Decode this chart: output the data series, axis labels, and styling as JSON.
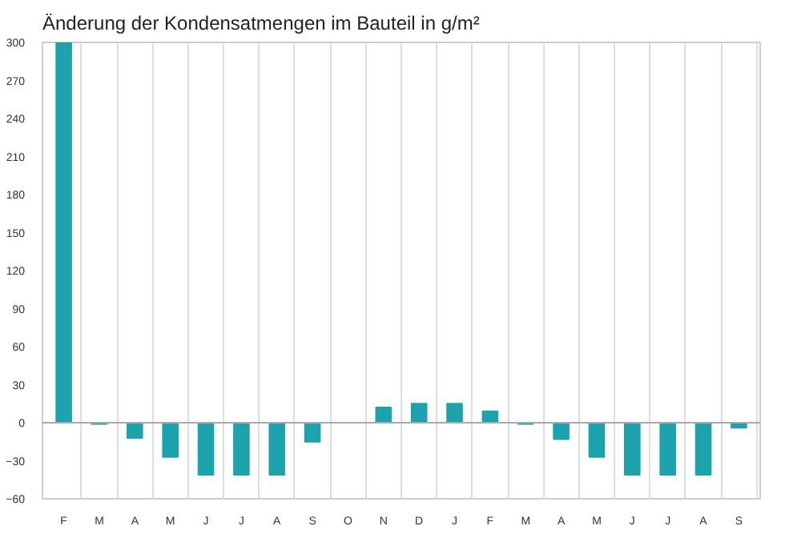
{
  "chart_data": {
    "type": "bar",
    "title": "Änderung der Kondensatmengen im Bauteil in g/m²",
    "categories": [
      "F",
      "M",
      "A",
      "M",
      "J",
      "J",
      "A",
      "S",
      "O",
      "N",
      "D",
      "J",
      "F",
      "M",
      "A",
      "M",
      "J",
      "J",
      "A",
      "S"
    ],
    "values": [
      300,
      -1,
      -12,
      -27,
      -41,
      -41,
      -41,
      -15,
      0,
      12,
      15,
      15,
      9,
      -1,
      -13,
      -27,
      -41,
      -41,
      -41,
      -4
    ],
    "color": "#1ca3ae",
    "ylim": [
      -60,
      300
    ],
    "yticks": [
      -60,
      -30,
      0,
      30,
      60,
      90,
      120,
      150,
      180,
      210,
      240,
      270,
      300
    ],
    "grid": "x"
  }
}
